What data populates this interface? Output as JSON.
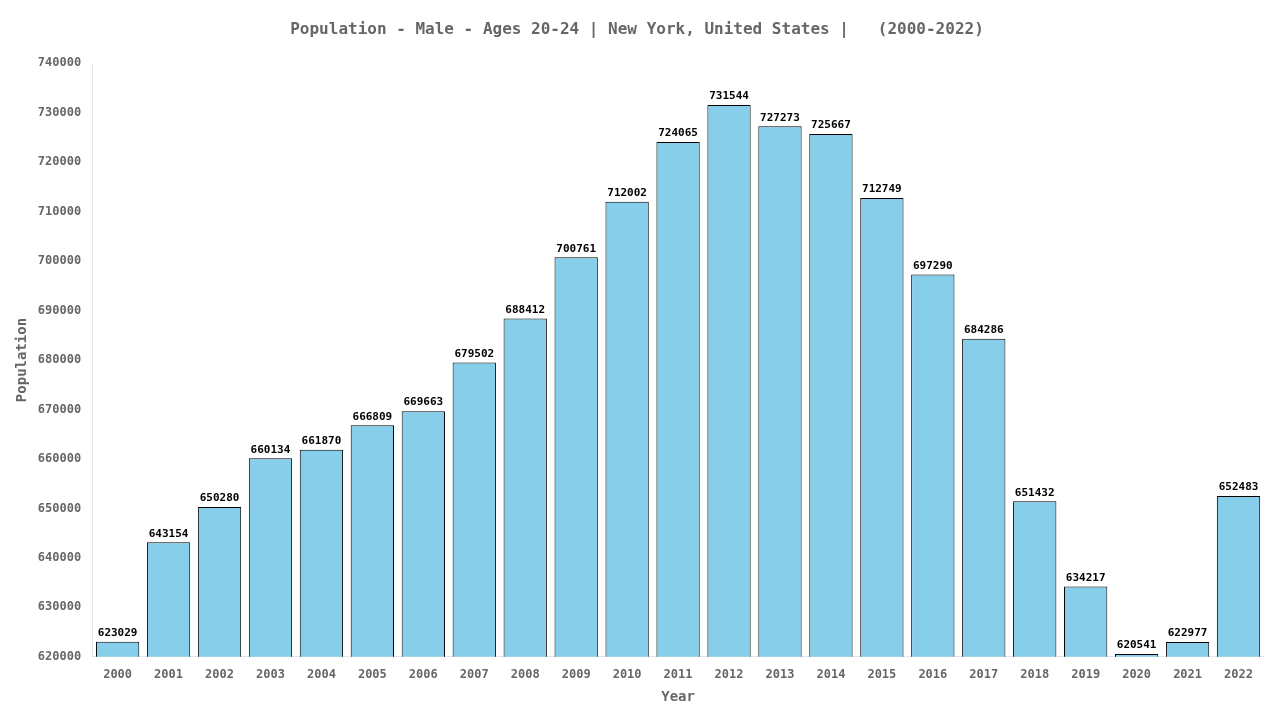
{
  "chart_data": {
    "type": "bar",
    "title": "Population - Male - Ages 20-24 | New York, United States |   (2000-2022)",
    "xlabel": "Year",
    "ylabel": "Population",
    "categories": [
      "2000",
      "2001",
      "2002",
      "2003",
      "2004",
      "2005",
      "2006",
      "2007",
      "2008",
      "2009",
      "2010",
      "2011",
      "2012",
      "2013",
      "2014",
      "2015",
      "2016",
      "2017",
      "2018",
      "2019",
      "2020",
      "2021",
      "2022"
    ],
    "values": [
      623029,
      643154,
      650280,
      660134,
      661870,
      666809,
      669663,
      679502,
      688412,
      700761,
      712002,
      724065,
      731544,
      727273,
      725667,
      712749,
      697290,
      684286,
      651432,
      634217,
      620541,
      622977,
      652483
    ],
    "color": "#87CEEB",
    "ylim": [
      620000,
      740000
    ],
    "yticks": [
      620000,
      630000,
      640000,
      650000,
      660000,
      670000,
      680000,
      690000,
      700000,
      710000,
      720000,
      730000,
      740000
    ],
    "grid": false,
    "data_labels": true
  }
}
